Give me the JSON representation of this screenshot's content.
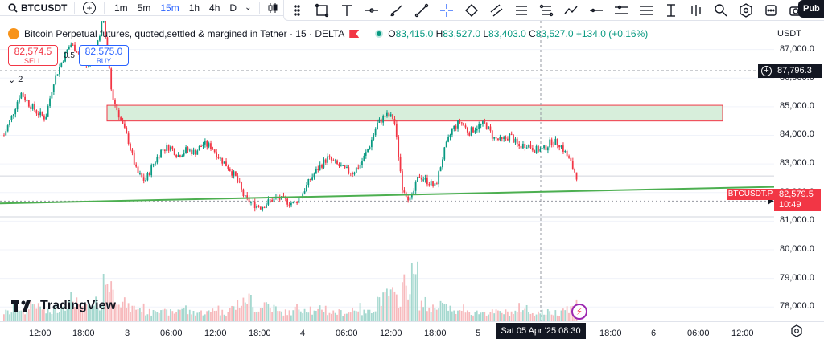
{
  "toolbar": {
    "symbol": "BTCUSDT",
    "intervals": [
      "1m",
      "5m",
      "15m",
      "1h",
      "4h",
      "D"
    ],
    "active_interval": "15m",
    "publish_label": "Pub",
    "drawing_tools": [
      "select-rect-icon",
      "text-tool-icon",
      "horizontal-ray-icon",
      "brush-icon",
      "trendline-icon",
      "crosshair-icon",
      "path-icon",
      "parallel-channel-icon",
      "fib-icon",
      "node-path-icon",
      "zigzag-icon",
      "horizontal-line-icon",
      "multi-line-icon",
      "cross-line-icon",
      "ruler-icon",
      "vertical-lines-icon",
      "magnifier-icon",
      "settings-hex-icon",
      "ellipsis-icon",
      "camera-icon"
    ]
  },
  "legend": {
    "title": "Bitcoin Perpetual futures, quoted,settled & margined in Tether · 15 · DELTA",
    "o_label": "O",
    "o": "83,415.0",
    "h_label": "H",
    "h": "83,527.0",
    "l_label": "L",
    "l": "83,403.0",
    "c_label": "C",
    "c": "83,527.0",
    "change": "+134.0 (+0.16%)"
  },
  "trade": {
    "sell_price": "82,574.5",
    "sell_label": "SELL",
    "spread": "0.5",
    "buy_price": "82,575.0",
    "buy_label": "BUY",
    "collapse_count": "2"
  },
  "price_axis": {
    "currency": "USDT",
    "ticks": [
      "87,000.0",
      "86,000.0",
      "85,000.0",
      "84,000.0",
      "83,000.0",
      "82,000.0",
      "81,000.0",
      "80,000.0",
      "79,000.0",
      "78,000.0"
    ],
    "crosshair_price": "87,796.3",
    "last_price": "82,579.5",
    "countdown": "10:49",
    "symbol_tag": "BTCUSDT.P"
  },
  "time_axis": {
    "labels": [
      "12:00",
      "18:00",
      "3",
      "06:00",
      "12:00",
      "18:00",
      "4",
      "06:00",
      "12:00",
      "18:00",
      "5",
      "18:00",
      "6",
      "06:00",
      "12:00"
    ],
    "crosshair_time": "Sat 05 Apr '25   08:30"
  },
  "brand": {
    "name": "TradingView"
  },
  "colors": {
    "up": "#089981",
    "down": "#f23645",
    "accent": "#2962ff",
    "zone": "#d7eedb",
    "trend": "#4caf50"
  },
  "chart_data": {
    "type": "candlestick",
    "title": "",
    "ylim": [
      77500,
      88000
    ],
    "x_range": [
      "2025-04-02 09:00",
      "2025-04-06 15:00"
    ],
    "zone": {
      "from": 84500,
      "to": 85050
    },
    "trendline": {
      "start": 81620,
      "end": 82200
    },
    "price_path": [
      84000,
      84700,
      85500,
      85100,
      84800,
      84600,
      85900,
      86600,
      87200,
      86900,
      86400,
      86900,
      88100,
      85400,
      84600,
      83800,
      82700,
      82400,
      83000,
      83500,
      83600,
      83300,
      83500,
      83400,
      83700,
      83600,
      83200,
      82900,
      82500,
      81800,
      81600,
      81500,
      81700,
      81800,
      81700,
      81600,
      82000,
      82500,
      82900,
      83200,
      83000,
      82800,
      82700,
      83000,
      83600,
      84400,
      84700,
      84600,
      82200,
      81700,
      82600,
      82400,
      82200,
      83400,
      84200,
      84500,
      84100,
      84300,
      84400,
      83900,
      83800,
      84000,
      83600,
      83700,
      83500,
      83500,
      83800,
      83700,
      83200,
      82580
    ],
    "volume_path": [
      2,
      3,
      2,
      4,
      3,
      2,
      3,
      4,
      5,
      3,
      3,
      4,
      9,
      6,
      4,
      3,
      3,
      2,
      3,
      2,
      2,
      3,
      2,
      2,
      2,
      3,
      2,
      3,
      4,
      5,
      3,
      4,
      3,
      2,
      2,
      3,
      3,
      2,
      3,
      2,
      2,
      2,
      3,
      2,
      3,
      5,
      6,
      5,
      8,
      10,
      4,
      3,
      4,
      3,
      2,
      3,
      2,
      2,
      2,
      2,
      2,
      2,
      3,
      2,
      2,
      2,
      2,
      3,
      3,
      4
    ]
  }
}
